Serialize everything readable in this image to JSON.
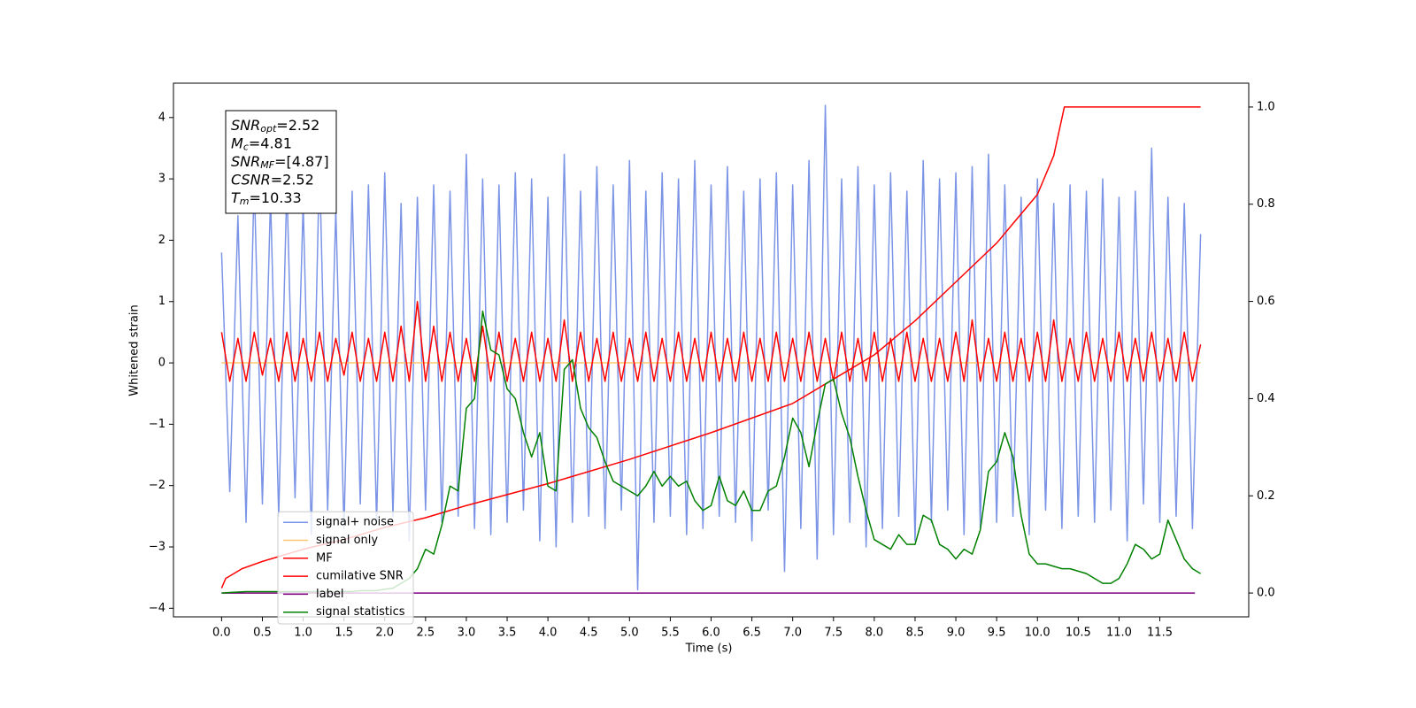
{
  "chart_data": {
    "type": "line",
    "xlabel": "Time (s)",
    "ylabel": "Whitened strain",
    "xlim": [
      -0.59,
      12.59
    ],
    "ylim": [
      -4.14,
      4.56
    ],
    "y2lim": [
      -0.049,
      1.049
    ],
    "xticks": [
      {
        "value": 0,
        "label": "0.0"
      },
      0.5,
      {
        "value": 1,
        "label": "1.0"
      },
      1.5,
      {
        "value": 2,
        "label": "2.0"
      },
      2.5,
      {
        "value": 3,
        "label": "3.0"
      },
      3.5,
      {
        "value": 4,
        "label": "4.0"
      },
      4.5,
      {
        "value": 5,
        "label": "5.0"
      },
      5.5,
      {
        "value": 6,
        "label": "6.0"
      },
      6.5,
      {
        "value": 7,
        "label": "7.0"
      },
      7.5,
      {
        "value": 8,
        "label": "8.0"
      },
      8.5,
      {
        "value": 9,
        "label": "9.0"
      },
      9.5,
      {
        "value": 10,
        "label": "10.0"
      },
      10.5,
      {
        "value": 11,
        "label": "11.0"
      },
      11.5
    ],
    "yticks": [
      {
        "value": -4,
        "label": "−4"
      },
      {
        "value": -3,
        "label": "−3"
      },
      {
        "value": -2,
        "label": "−2"
      },
      {
        "value": -1,
        "label": "−1"
      },
      0,
      1,
      2,
      3,
      4
    ],
    "y2ticks": [
      {
        "value": 0,
        "label": "0.0"
      },
      0.2,
      0.4,
      0.6,
      0.8,
      {
        "value": 1,
        "label": "1.0"
      }
    ],
    "annotation": [
      {
        "symbol": "SNR",
        "sub": "opt",
        "text": "=2.52"
      },
      {
        "symbol": "M",
        "sub": "c",
        "text": "=4.81"
      },
      {
        "symbol": "SNR",
        "sub": "MF",
        "text": "=[4.87]"
      },
      {
        "symbol": "CSNR",
        "text": "=2.52"
      },
      {
        "symbol": "T",
        "sub": "m",
        "text": "=10.33"
      }
    ],
    "legend": "lower left",
    "x": [
      0,
      0.1,
      0.2,
      0.3,
      0.4,
      0.5,
      0.6,
      0.7,
      0.8,
      0.9,
      1,
      1.1,
      1.2,
      1.3,
      1.4,
      1.5,
      1.6,
      1.7,
      1.8,
      1.9,
      2,
      2.1,
      2.2,
      2.3,
      2.4,
      2.5,
      2.6,
      2.7,
      2.8,
      2.9,
      3,
      3.1,
      3.2,
      3.3,
      3.4,
      3.5,
      3.6,
      3.7,
      3.8,
      3.9,
      4,
      4.1,
      4.2,
      4.3,
      4.4,
      4.5,
      4.6,
      4.7,
      4.8,
      4.9,
      5,
      5.1,
      5.2,
      5.3,
      5.4,
      5.5,
      5.6,
      5.7,
      5.8,
      5.9,
      6,
      6.1,
      6.2,
      6.3,
      6.4,
      6.5,
      6.6,
      6.7,
      6.8,
      6.9,
      7,
      7.1,
      7.2,
      7.3,
      7.4,
      7.5,
      7.6,
      7.7,
      7.8,
      7.9,
      8,
      8.1,
      8.2,
      8.3,
      8.4,
      8.5,
      8.6,
      8.7,
      8.8,
      8.9,
      9,
      9.1,
      9.2,
      9.3,
      9.4,
      9.5,
      9.6,
      9.7,
      9.8,
      9.9,
      10,
      10.1,
      10.2,
      10.3,
      10.4,
      10.5,
      10.6,
      10.7,
      10.8,
      10.9,
      11,
      11.1,
      11.2,
      11.3,
      11.4,
      11.5,
      11.6,
      11.7,
      11.8,
      11.9,
      12
    ],
    "series": [
      {
        "name": "signal+ noise",
        "color": "#7b94e6",
        "values": [
          1.8,
          -2.1,
          2.4,
          -2.6,
          3.0,
          -2.3,
          2.7,
          -2.5,
          2.9,
          -2.2,
          2.6,
          -2.8,
          3.3,
          -2.4,
          2.5,
          -2.7,
          2.8,
          -2.3,
          2.9,
          -2.6,
          3.1,
          -2.5,
          2.6,
          -2.9,
          2.7,
          -2.4,
          2.9,
          -2.6,
          2.8,
          -2.5,
          3.4,
          -2.7,
          3.0,
          -2.8,
          2.9,
          -2.6,
          3.1,
          -2.4,
          3.0,
          -2.9,
          2.7,
          -3.0,
          3.4,
          -2.6,
          2.8,
          -2.5,
          3.2,
          -2.7,
          2.9,
          -2.4,
          3.3,
          -3.7,
          2.8,
          -2.6,
          3.1,
          -2.5,
          3.0,
          -2.8,
          3.3,
          -2.7,
          2.9,
          -2.5,
          3.2,
          -2.6,
          2.8,
          -2.9,
          3.0,
          -2.4,
          3.1,
          -3.4,
          2.9,
          -2.7,
          3.3,
          -3.2,
          4.2,
          -2.8,
          3.0,
          -2.6,
          3.2,
          -3.0,
          2.9,
          -2.7,
          3.1,
          -2.5,
          2.8,
          -2.9,
          3.3,
          -2.6,
          3.0,
          -2.4,
          3.1,
          -2.8,
          3.2,
          -2.7,
          3.4,
          -2.6,
          2.9,
          -2.5,
          2.7,
          -2.8,
          3.0,
          -2.4,
          2.6,
          -2.7,
          2.9,
          -2.5,
          2.8,
          -2.6,
          3.0,
          -2.4,
          2.7,
          -2.9,
          2.8,
          -2.3,
          3.5,
          -2.6,
          2.7,
          -2.5,
          2.6,
          -2.7,
          2.1
        ]
      },
      {
        "name": "signal only",
        "color": "#ffc870",
        "x": [
          0,
          12
        ],
        "values": [
          0,
          0
        ]
      },
      {
        "name": "MF",
        "color": "#ff0000",
        "values": [
          0.5,
          -0.3,
          0.4,
          -0.3,
          0.5,
          -0.2,
          0.4,
          -0.3,
          0.5,
          -0.3,
          0.4,
          -0.3,
          0.5,
          -0.3,
          0.4,
          -0.2,
          0.5,
          -0.3,
          0.4,
          -0.3,
          0.5,
          -0.3,
          0.6,
          -0.3,
          1.0,
          -0.3,
          0.6,
          -0.3,
          0.5,
          -0.3,
          0.4,
          -0.3,
          0.6,
          -0.3,
          0.5,
          -0.3,
          0.4,
          -0.3,
          0.5,
          -0.3,
          0.4,
          -0.3,
          0.7,
          -0.3,
          0.5,
          -0.3,
          0.4,
          -0.3,
          0.5,
          -0.3,
          0.4,
          -0.3,
          0.5,
          -0.3,
          0.4,
          -0.3,
          0.5,
          -0.3,
          0.4,
          -0.3,
          0.5,
          -0.3,
          0.4,
          -0.3,
          0.5,
          -0.3,
          0.4,
          -0.3,
          0.5,
          -0.3,
          0.4,
          -0.3,
          0.5,
          -0.3,
          0.4,
          -0.3,
          0.5,
          -0.3,
          0.4,
          -0.3,
          0.5,
          -0.3,
          0.4,
          -0.3,
          0.5,
          -0.3,
          0.4,
          -0.3,
          0.4,
          -0.3,
          0.5,
          -0.3,
          0.7,
          -0.3,
          0.4,
          -0.3,
          0.5,
          -0.3,
          0.4,
          -0.3,
          0.5,
          -0.3,
          0.7,
          -0.3,
          0.4,
          -0.3,
          0.5,
          -0.3,
          0.4,
          -0.3,
          0.5,
          -0.3,
          0.4,
          -0.3,
          0.5,
          -0.3,
          0.4,
          -0.3,
          0.5,
          -0.3,
          0.3
        ]
      },
      {
        "name": "cumilative SNR",
        "color": "#ff0000",
        "axis": "y2",
        "x": [
          0,
          0.05,
          0.25,
          0.5,
          1,
          1.5,
          2,
          2.5,
          3,
          4,
          5,
          6,
          7,
          7.5,
          8,
          8.5,
          9,
          9.5,
          10,
          10.2,
          10.33,
          12
        ],
        "values": [
          0.01,
          0.03,
          0.05,
          0.065,
          0.09,
          0.11,
          0.135,
          0.155,
          0.18,
          0.225,
          0.275,
          0.33,
          0.39,
          0.44,
          0.49,
          0.56,
          0.64,
          0.72,
          0.82,
          0.9,
          1.0,
          1.0
        ]
      },
      {
        "name": "label",
        "color": "#800080",
        "axis": "y2",
        "x": [
          0,
          11.93
        ],
        "values": [
          0,
          0
        ]
      },
      {
        "name": "signal statistics",
        "color": "#008000",
        "axis": "y2",
        "values": [
          0,
          0.001,
          0.002,
          0.003,
          0.003,
          0.003,
          0.003,
          0.003,
          0.003,
          0.003,
          0.003,
          0.003,
          0.003,
          0.003,
          0.003,
          0.003,
          0.003,
          0.005,
          0.005,
          0.005,
          0.008,
          0.01,
          0.02,
          0.03,
          0.05,
          0.09,
          0.08,
          0.14,
          0.22,
          0.21,
          0.38,
          0.4,
          0.58,
          0.5,
          0.49,
          0.42,
          0.4,
          0.33,
          0.28,
          0.33,
          0.22,
          0.21,
          0.46,
          0.48,
          0.38,
          0.34,
          0.32,
          0.27,
          0.23,
          0.22,
          0.21,
          0.2,
          0.22,
          0.25,
          0.22,
          0.24,
          0.22,
          0.23,
          0.19,
          0.17,
          0.18,
          0.24,
          0.19,
          0.18,
          0.21,
          0.17,
          0.17,
          0.21,
          0.22,
          0.28,
          0.36,
          0.33,
          0.26,
          0.35,
          0.43,
          0.44,
          0.37,
          0.32,
          0.24,
          0.17,
          0.11,
          0.1,
          0.09,
          0.12,
          0.1,
          0.1,
          0.16,
          0.15,
          0.1,
          0.09,
          0.07,
          0.09,
          0.08,
          0.13,
          0.25,
          0.27,
          0.33,
          0.28,
          0.16,
          0.08,
          0.06,
          0.06,
          0.055,
          0.05,
          0.05,
          0.045,
          0.04,
          0.03,
          0.02,
          0.02,
          0.03,
          0.06,
          0.1,
          0.09,
          0.07,
          0.08,
          0.15,
          0.11,
          0.07,
          0.05,
          0.04
        ]
      }
    ]
  }
}
